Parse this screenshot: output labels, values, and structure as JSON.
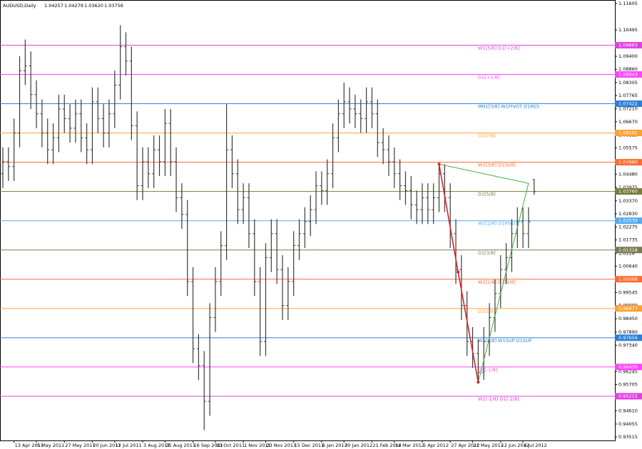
{
  "chart_data": {
    "type": "ohlc",
    "header": {
      "symbol": "AUDUSD,Daily",
      "values": [
        1.04257,
        1.04279,
        1.0362,
        1.03756
      ],
      "value_labels": [
        "1.04257",
        "1.04279",
        "1.03620",
        "1.03756"
      ]
    },
    "color": "#3a3a3a",
    "categories": [
      null,
      null,
      "13 Apr 2011",
      null,
      null,
      null,
      "5 May 2011",
      null,
      null,
      null,
      null,
      "27 May 2011",
      null,
      null,
      null,
      null,
      "20 Jun 2011",
      null,
      null,
      null,
      "12 Jul 2011",
      null,
      null,
      null,
      null,
      "3 Aug 2011",
      null,
      null,
      null,
      "25 Aug 2011",
      null,
      null,
      null,
      null,
      "16 Sep 2011",
      null,
      null,
      null,
      "10 Oct 2011",
      null,
      null,
      null,
      null,
      "1 Nov 2011",
      null,
      null,
      null,
      "23 Nov 2011",
      null,
      null,
      null,
      null,
      "15 Dec 2011",
      null,
      null,
      null,
      null,
      "6 Jan 2012",
      null,
      null,
      null,
      "30 Jan 2012",
      null,
      null,
      null,
      null,
      "21 Feb 2012",
      null,
      null,
      null,
      "14 Mar 2012",
      null,
      null,
      null,
      null,
      "5 Apr 2012",
      null,
      null,
      null,
      null,
      "27 Apr 2012",
      null,
      null,
      null,
      "21 May 2012",
      null,
      null,
      null,
      null,
      "12 Jun 2012",
      null,
      null,
      null,
      "4 Jul 2012",
      null,
      null
    ],
    "open": [
      1.045,
      1.05,
      1.048,
      1.062,
      1.088,
      1.09,
      1.078,
      1.07,
      1.062,
      1.055,
      1.06,
      1.072,
      1.068,
      1.064,
      1.07,
      1.06,
      1.055,
      1.075,
      1.068,
      1.062,
      1.07,
      1.082,
      1.098,
      1.092,
      1.065,
      1.04,
      1.05,
      1.045,
      1.055,
      1.05,
      1.066,
      1.05,
      1.035,
      1.028,
      1.0,
      0.972,
      0.965,
      0.95,
      0.985,
      1.0,
      1.015,
      1.055,
      1.045,
      1.03,
      1.035,
      1.02,
      1.0,
      0.975,
      1.01,
      1.02,
      1.005,
      0.99,
      1.0,
      1.015,
      1.02,
      1.025,
      1.03,
      1.04,
      1.038,
      1.045,
      1.06,
      1.07,
      1.075,
      1.072,
      1.07,
      1.068,
      1.075,
      1.07,
      1.058,
      1.055,
      1.05,
      1.045,
      1.04,
      1.038,
      1.032,
      1.03,
      1.035,
      1.03,
      1.035,
      1.045,
      1.035,
      1.02,
      1.005,
      0.99,
      0.975,
      0.97,
      0.962,
      0.975,
      0.985,
      0.995,
      1.005,
      1.01,
      1.02,
      1.025,
      1.02,
      1.04257
    ],
    "high": [
      1.056,
      1.056,
      1.068,
      1.094,
      1.101,
      1.096,
      1.084,
      1.076,
      1.068,
      1.066,
      1.078,
      1.078,
      1.074,
      1.076,
      1.076,
      1.066,
      1.081,
      1.081,
      1.074,
      1.076,
      1.088,
      1.107,
      1.104,
      1.098,
      1.071,
      1.056,
      1.056,
      1.061,
      1.061,
      1.072,
      1.072,
      1.056,
      1.041,
      1.034,
      1.006,
      0.978,
      0.971,
      0.991,
      1.006,
      1.021,
      1.074,
      1.061,
      1.051,
      1.041,
      1.041,
      1.026,
      1.006,
      1.016,
      1.026,
      1.026,
      1.011,
      1.006,
      1.021,
      1.026,
      1.031,
      1.036,
      1.046,
      1.046,
      1.051,
      1.066,
      1.076,
      1.083,
      1.081,
      1.078,
      1.076,
      1.081,
      1.081,
      1.076,
      1.064,
      1.061,
      1.056,
      1.051,
      1.046,
      1.044,
      1.038,
      1.041,
      1.041,
      1.041,
      1.049,
      1.049,
      1.041,
      1.026,
      1.011,
      0.996,
      0.981,
      0.976,
      0.981,
      0.991,
      1.001,
      1.011,
      1.016,
      1.026,
      1.031,
      1.031,
      1.031,
      1.04279
    ],
    "low": [
      1.039,
      1.042,
      1.042,
      1.056,
      1.082,
      1.072,
      1.064,
      1.056,
      1.049,
      1.049,
      1.054,
      1.062,
      1.058,
      1.058,
      1.054,
      1.049,
      1.049,
      1.062,
      1.056,
      1.056,
      1.064,
      1.076,
      1.086,
      1.059,
      1.034,
      1.034,
      1.039,
      1.039,
      1.044,
      1.044,
      1.044,
      1.029,
      1.022,
      0.994,
      0.966,
      0.959,
      0.938,
      0.944,
      0.979,
      0.994,
      1.009,
      1.039,
      1.024,
      1.024,
      1.014,
      0.994,
      0.969,
      0.969,
      1.004,
      0.999,
      0.984,
      0.984,
      0.994,
      1.009,
      1.014,
      1.019,
      1.024,
      1.032,
      1.032,
      1.039,
      1.054,
      1.064,
      1.066,
      1.064,
      1.062,
      1.062,
      1.064,
      1.052,
      1.049,
      1.044,
      1.039,
      1.034,
      1.032,
      1.026,
      1.024,
      1.024,
      1.024,
      1.024,
      1.029,
      1.029,
      1.014,
      0.999,
      0.984,
      0.969,
      0.964,
      0.958,
      0.959,
      0.969,
      0.979,
      0.989,
      0.999,
      1.004,
      1.014,
      1.014,
      1.014,
      1.0362
    ],
    "close": [
      1.05,
      1.048,
      1.062,
      1.088,
      1.09,
      1.078,
      1.07,
      1.062,
      1.055,
      1.06,
      1.072,
      1.068,
      1.064,
      1.07,
      1.06,
      1.055,
      1.075,
      1.068,
      1.062,
      1.07,
      1.082,
      1.098,
      1.092,
      1.065,
      1.04,
      1.05,
      1.045,
      1.055,
      1.05,
      1.066,
      1.05,
      1.035,
      1.028,
      1.0,
      0.972,
      0.965,
      0.95,
      0.985,
      1.0,
      1.015,
      1.055,
      1.045,
      1.03,
      1.035,
      1.02,
      1.0,
      0.975,
      1.01,
      1.02,
      1.005,
      0.99,
      1.0,
      1.015,
      1.02,
      1.025,
      1.03,
      1.04,
      1.038,
      1.045,
      1.06,
      1.07,
      1.075,
      1.072,
      1.07,
      1.068,
      1.075,
      1.07,
      1.058,
      1.055,
      1.05,
      1.045,
      1.04,
      1.038,
      1.032,
      1.03,
      1.035,
      1.03,
      1.035,
      1.045,
      1.035,
      1.02,
      1.005,
      0.99,
      0.975,
      0.97,
      0.962,
      0.975,
      0.985,
      0.995,
      1.005,
      1.01,
      1.02,
      1.025,
      1.02,
      1.025,
      1.03756
    ],
    "ylim": [
      0.9337,
      1.1169
    ],
    "yticks": [
      1.11605,
      1.10495,
      {
        "value": 1.094,
        "label": "1.09400"
      },
      {
        "value": 1.0886,
        "label": "1.08860"
      },
      1.08305,
      1.07765,
      {
        "value": 1.0721,
        "label": "1.07210"
      },
      {
        "value": 1.0667,
        "label": "1.06670"
      },
      1.06115,
      1.05575,
      {
        "value": 1.0448,
        "label": "1.04480"
      },
      1.03925,
      {
        "value": 1.0337,
        "label": "1.03370"
      },
      {
        "value": 1.0283,
        "label": "1.02830"
      },
      1.02275,
      1.01735,
      1.0118,
      {
        "value": 1.0064,
        "label": "1.00640"
      },
      0.99545,
      {
        "value": 0.99,
        "label": "0.99000"
      },
      {
        "value": 0.9845,
        "label": "0.98450"
      },
      {
        "value": 0.9789,
        "label": "0.97890"
      },
      {
        "value": 0.9734,
        "label": "0.97340"
      },
      0.96245,
      0.95705,
      {
        "value": 0.9461,
        "label": "0.94610"
      },
      0.94055,
      0.93515
    ],
    "levels": [
      {
        "name": "W1[5/8] D1[+2/8]",
        "price": 1.09863,
        "price_label": "1.09863",
        "color": "#e040e0"
      },
      {
        "name": "D1[+1/8]",
        "price": 1.08643,
        "price_label": "1.08643",
        "color": "#ff44ff"
      },
      {
        "name": "MN1[3/8] W1PIVOT D1RES",
        "price": 1.07422,
        "price_label": "1.07422",
        "color": "#2a7fd6"
      },
      {
        "name": "D1[7/8]",
        "price": 1.06201,
        "price_label": "1.06201",
        "color": "#ffa030"
      },
      {
        "name": "W1[3/8] D1[6/8]",
        "price": 1.0498,
        "price_label": "1.04980",
        "color": "#ff6a30"
      },
      {
        "name": "D1[5/8]",
        "price": 1.0376,
        "price_label": "1.03760",
        "color": "#7a7a3a"
      },
      {
        "name": "W1[2/8] D1PIVOT",
        "price": 1.02539,
        "price_label": "1.02539",
        "color": "#55aaee"
      },
      {
        "name": "D1[3/8]",
        "price": 1.01318,
        "price_label": "1.01318",
        "color": "#7a7a55"
      },
      {
        "name": "W1[1/8] D1[2/8]",
        "price": 1.00098,
        "price_label": "1.00098",
        "color": "#ff6a30"
      },
      {
        "name": "D1[1/8]",
        "price": 0.98877,
        "price_label": "0.98877",
        "color": "#ffa030"
      },
      {
        "name": "W1[0/8] W1SUP D1SUP",
        "price": 0.97656,
        "price_label": "0.97656",
        "color": "#2a7fd6"
      },
      {
        "name": "D1[-1/8]",
        "price": 0.96436,
        "price_label": "0.96436",
        "color": "#ff44ff"
      },
      {
        "name": "W1[-1/8] D1[-2/8]",
        "price": 0.95215,
        "price_label": "0.95215",
        "color": "#e040e0"
      }
    ],
    "pattern_red": {
      "color": "#e02020",
      "x": [
        78,
        81.4,
        85
      ],
      "y": [
        1.049,
        1.004,
        0.958
      ]
    },
    "pattern_green": {
      "color": "#40b040",
      "x": [
        85,
        94,
        78
      ],
      "y": [
        0.958,
        1.041,
        1.049
      ]
    }
  }
}
